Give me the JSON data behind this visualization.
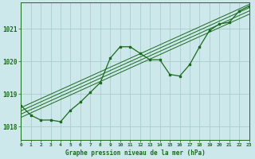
{
  "title": "Graphe pression niveau de la mer (hPa)",
  "background_color": "#cce8ea",
  "grid_color": "#aacdd0",
  "line_color": "#1a6b1a",
  "x_min": 0,
  "x_max": 23,
  "y_min": 1017.6,
  "y_max": 1021.8,
  "yticks": [
    1018,
    1019,
    1020,
    1021
  ],
  "xticks": [
    0,
    1,
    2,
    3,
    4,
    5,
    6,
    7,
    8,
    9,
    10,
    11,
    12,
    13,
    14,
    15,
    16,
    17,
    18,
    19,
    20,
    21,
    22,
    23
  ],
  "series": [
    [
      0,
      1018.65
    ],
    [
      1,
      1018.35
    ],
    [
      2,
      1018.2
    ],
    [
      3,
      1018.2
    ],
    [
      4,
      1018.15
    ],
    [
      5,
      1018.5
    ],
    [
      6,
      1018.75
    ],
    [
      7,
      1019.05
    ],
    [
      8,
      1019.35
    ],
    [
      9,
      1020.1
    ],
    [
      10,
      1020.45
    ],
    [
      11,
      1020.45
    ],
    [
      12,
      1020.25
    ],
    [
      13,
      1020.05
    ],
    [
      14,
      1020.05
    ],
    [
      15,
      1019.6
    ],
    [
      16,
      1019.55
    ],
    [
      17,
      1019.9
    ],
    [
      18,
      1020.45
    ],
    [
      19,
      1020.95
    ],
    [
      20,
      1021.15
    ],
    [
      21,
      1021.2
    ],
    [
      22,
      1021.55
    ],
    [
      23,
      1021.7
    ]
  ],
  "linear_lines": [
    [
      [
        0,
        1018.38
      ],
      [
        23,
        1021.55
      ]
    ],
    [
      [
        0,
        1018.48
      ],
      [
        23,
        1021.65
      ]
    ],
    [
      [
        0,
        1018.58
      ],
      [
        23,
        1021.75
      ]
    ],
    [
      [
        0,
        1018.28
      ],
      [
        23,
        1021.45
      ]
    ]
  ]
}
